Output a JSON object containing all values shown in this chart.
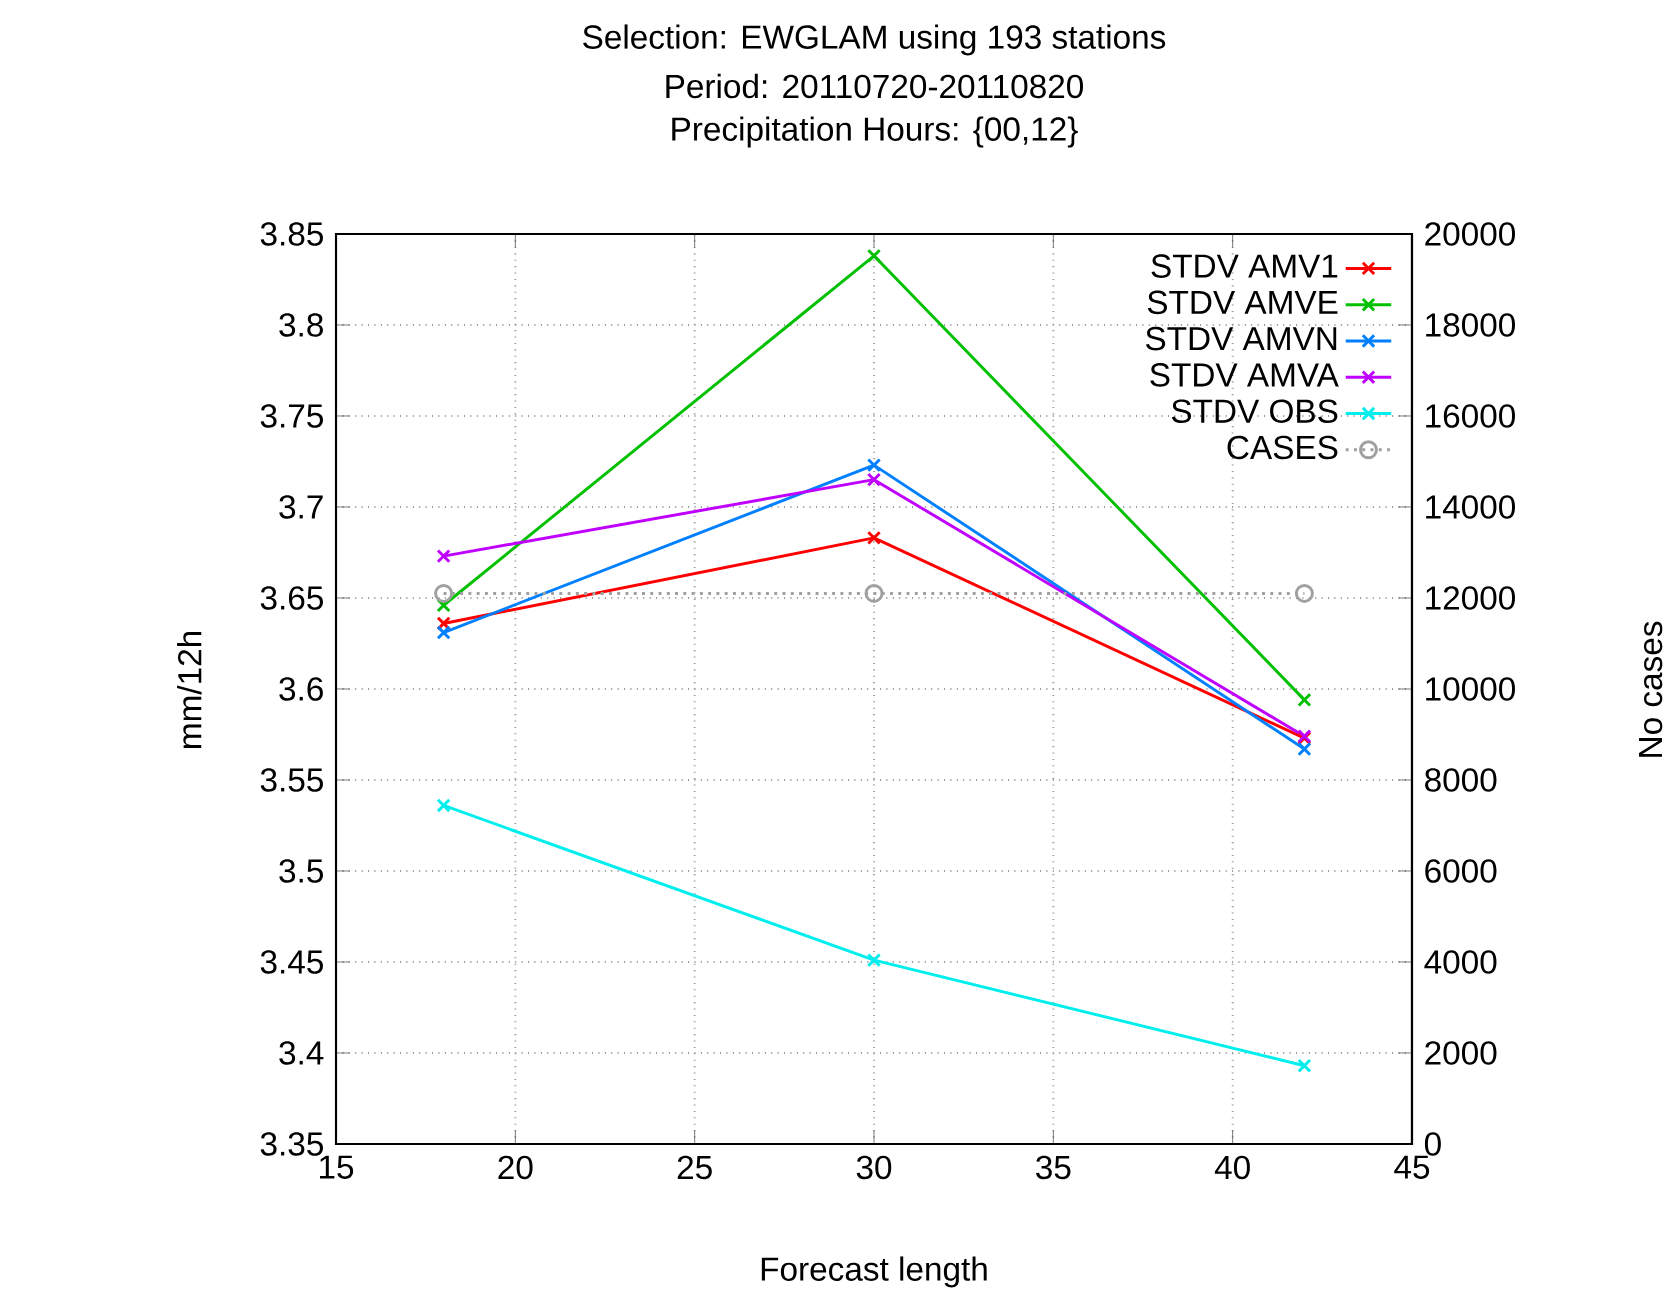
{
  "chart_data": {
    "type": "line",
    "title": "Selection: EWGLAM using   193 stations",
    "subtitle": "Period: 20110720-20110820",
    "annotations": [
      "Precipitation   Hours: {00,12}"
    ],
    "xlabel": "Forecast length",
    "ylabel": "mm/12h",
    "y2label": "No cases",
    "x": [
      18,
      30,
      42
    ],
    "series": [
      {
        "name": "STDV AMV1",
        "color": "#ff0000",
        "values": [
          3.636,
          3.683,
          3.573
        ]
      },
      {
        "name": "STDV AMVE",
        "color": "#00c000",
        "values": [
          3.646,
          3.838,
          3.594
        ]
      },
      {
        "name": "STDV AMVN",
        "color": "#0080ff",
        "values": [
          3.631,
          3.723,
          3.567
        ]
      },
      {
        "name": "STDV AMVA",
        "color": "#c000ff",
        "values": [
          3.673,
          3.715,
          3.574
        ]
      },
      {
        "name": "STDV OBS",
        "color": "#00eeee",
        "values": [
          3.536,
          3.451,
          3.393
        ]
      },
      {
        "name": "CASES",
        "color": "#a0a0a0",
        "values": [
          12100,
          12100,
          12100
        ],
        "axis": "y2",
        "marker": "circle",
        "line_style": "dotted"
      }
    ],
    "xlim": [
      15,
      45
    ],
    "xticks": [
      15,
      20,
      25,
      30,
      35,
      40,
      45
    ],
    "ylim": [
      3.35,
      3.85
    ],
    "yticks": [
      3.35,
      3.4,
      3.45,
      3.5,
      3.55,
      3.6,
      3.65,
      3.7,
      3.75,
      3.8,
      3.85
    ],
    "y2lim": [
      0,
      20000
    ],
    "y2ticks": [
      0,
      2000,
      4000,
      6000,
      8000,
      10000,
      12000,
      14000,
      16000,
      18000,
      20000
    ],
    "grid": true,
    "legend": "top right",
    "marker": "cross",
    "line_style": "solid"
  }
}
